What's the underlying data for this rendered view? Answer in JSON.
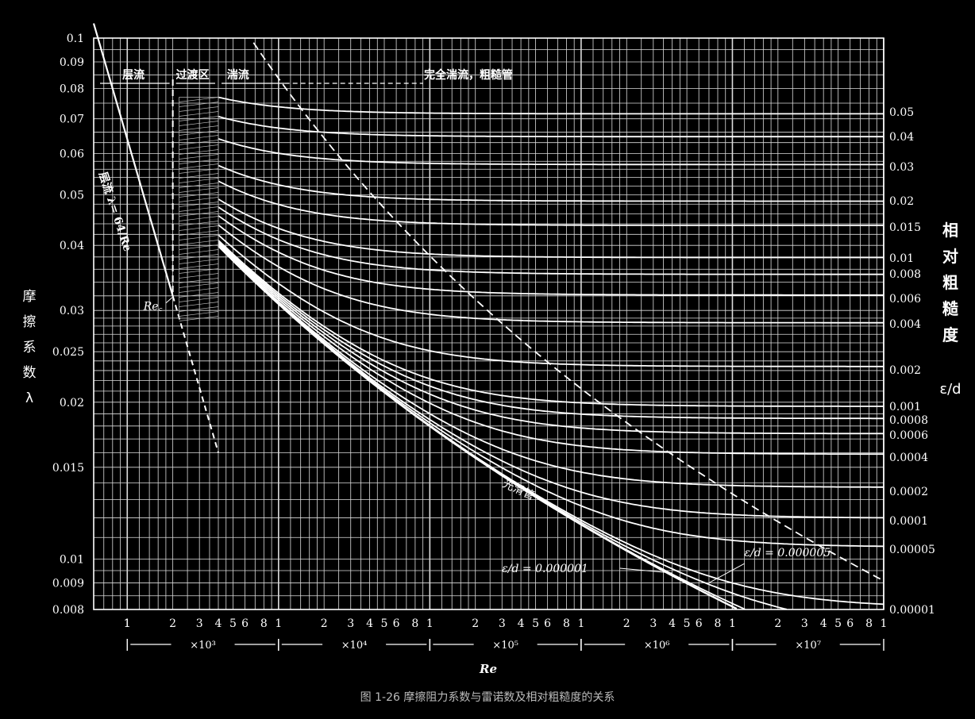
{
  "chart_data": {
    "type": "line",
    "title": "",
    "caption": "图 1-26  摩擦阻力系数与雷诺数及相对粗糙度的关系",
    "xlabel": "Re",
    "ylabel": "摩擦系数 λ",
    "y2label": "相对粗糙度 ε/d",
    "xscale": "log",
    "yscale": "log",
    "xlim": [
      600,
      100000000
    ],
    "ylim": [
      0.008,
      0.1
    ],
    "grid": true,
    "y_ticks": [
      "0.1",
      "0.09",
      "0.08",
      "0.07",
      "0.06",
      "0.05",
      "0.04",
      "0.03",
      "0.025",
      "0.02",
      "0.015",
      "0.01",
      "0.009",
      "0.008"
    ],
    "x_tick_digits": [
      "1",
      "2",
      "3",
      "4",
      "5",
      "6",
      "8"
    ],
    "x_decade_labels": [
      "×10³",
      "×10⁴",
      "×10⁵",
      "×10⁶",
      "×10⁷"
    ],
    "right_ticks": [
      "0.05",
      "0.04",
      "0.03",
      "0.02",
      "0.015",
      "0.01",
      "0.008",
      "0.006",
      "0.004",
      "0.002",
      "0.001",
      "0.0008",
      "0.0006",
      "0.0004",
      "0.0002",
      "0.0001",
      "0.00005",
      "0.00001"
    ],
    "regions": [
      "层流",
      "过渡区",
      "湍流",
      "完全湍流，粗糙管"
    ],
    "annotations": {
      "laminar_label": "层流  λ= 64/Re",
      "critical": "Re꜀",
      "smooth": "光滑管",
      "eps_low": "ε/d = 0.000001",
      "eps_high": "ε/d = 0.000005"
    },
    "series": [
      {
        "kind": "laminar",
        "x": [
          600,
          2000,
          4000
        ],
        "y": [
          0.1067,
          0.032,
          0.016
        ]
      },
      {
        "kind": "roughness",
        "relative_roughness": 0.05
      },
      {
        "kind": "roughness",
        "relative_roughness": 0.04
      },
      {
        "kind": "roughness",
        "relative_roughness": 0.03
      },
      {
        "kind": "roughness",
        "relative_roughness": 0.02
      },
      {
        "kind": "roughness",
        "relative_roughness": 0.015
      },
      {
        "kind": "roughness",
        "relative_roughness": 0.01
      },
      {
        "kind": "roughness",
        "relative_roughness": 0.008
      },
      {
        "kind": "roughness",
        "relative_roughness": 0.006
      },
      {
        "kind": "roughness",
        "relative_roughness": 0.004
      },
      {
        "kind": "roughness",
        "relative_roughness": 0.002
      },
      {
        "kind": "roughness",
        "relative_roughness": 0.001
      },
      {
        "kind": "roughness",
        "relative_roughness": 0.0008
      },
      {
        "kind": "roughness",
        "relative_roughness": 0.0006
      },
      {
        "kind": "roughness",
        "relative_roughness": 0.0004
      },
      {
        "kind": "roughness",
        "relative_roughness": 0.0002
      },
      {
        "kind": "roughness",
        "relative_roughness": 0.0001
      },
      {
        "kind": "roughness",
        "relative_roughness": 5e-05
      },
      {
        "kind": "roughness",
        "relative_roughness": 1e-05
      },
      {
        "kind": "roughness",
        "relative_roughness": 5e-06
      },
      {
        "kind": "roughness",
        "relative_roughness": 1e-06
      },
      {
        "kind": "smooth",
        "relative_roughness": 0
      }
    ]
  },
  "left_label_chars": [
    "摩",
    "擦",
    "系",
    "数",
    "λ"
  ],
  "right_label_chars": [
    "相",
    "对",
    "粗",
    "糙",
    "度",
    "ε/d"
  ],
  "colors": {
    "background": "#000000",
    "lines": "#ffffff",
    "grid": "#d8d8d8"
  }
}
